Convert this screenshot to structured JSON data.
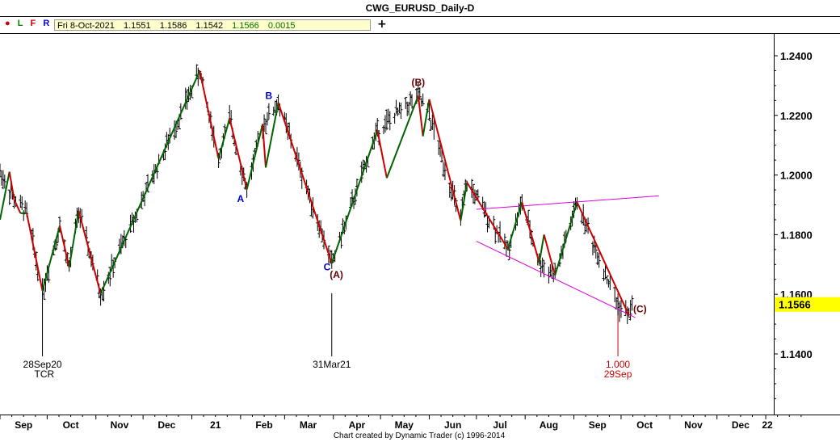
{
  "window": {
    "title": "CWG_EURUSD_Daily-D",
    "footer": "Chart created by Dynamic Trader  (c) 1996-2014"
  },
  "toolbar": {
    "flags": [
      {
        "label": "●",
        "color": "#cc0000"
      },
      {
        "label": "L",
        "color": "#008000"
      },
      {
        "label": "F",
        "color": "#cc0000"
      },
      {
        "label": "R",
        "color": "#0000cc"
      }
    ],
    "add_label": "+"
  },
  "quote": {
    "date": "Fri 8-Oct-2021",
    "open": "1.1551",
    "high": "1.1586",
    "low": "1.1542",
    "close": "1.1566",
    "change": "0.0015"
  },
  "chart_data": {
    "type": "ohlc",
    "y_ticks": [
      "1.2400",
      "1.2200",
      "1.2000",
      "1.1800",
      "1.1600",
      "1.1400"
    ],
    "ylim": [
      1.125,
      1.25
    ],
    "x_ticks": [
      "Sep",
      "Oct",
      "Nov",
      "Dec",
      "21",
      "Feb",
      "Mar",
      "Apr",
      "May",
      "Jun",
      "Jul",
      "Aug",
      "Sep",
      "Oct",
      "Nov",
      "Dec",
      "22"
    ],
    "x_range": [
      "2020-09-01",
      "2022-01-02"
    ],
    "last_price": {
      "label": "1.1566",
      "value": 1.1566
    },
    "pivots": [
      {
        "date": "2020-09-01",
        "price": 1.2011
      },
      {
        "date": "2020-09-10",
        "price": 1.1918
      },
      {
        "date": "2020-09-18",
        "price": 1.1872
      },
      {
        "date": "2020-09-28",
        "price": 1.1612
      },
      {
        "date": "2020-10-09",
        "price": 1.183
      },
      {
        "date": "2020-10-15",
        "price": 1.169
      },
      {
        "date": "2020-10-21",
        "price": 1.188
      },
      {
        "date": "2020-11-04",
        "price": 1.1602
      },
      {
        "date": "2021-01-06",
        "price": 1.2349
      },
      {
        "date": "2021-01-18",
        "price": 1.2055
      },
      {
        "date": "2021-01-25",
        "price": 1.219
      },
      {
        "date": "2021-02-05",
        "price": 1.1952
      },
      {
        "date": "2021-02-15",
        "price": 1.217
      },
      {
        "date": "2021-02-25",
        "price": 1.2243
      },
      {
        "date": "2021-03-31",
        "price": 1.1704
      },
      {
        "date": "2021-04-29",
        "price": 1.215
      },
      {
        "date": "2021-05-25",
        "price": 1.2266
      },
      {
        "date": "2021-06-01",
        "price": 1.22
      },
      {
        "date": "2021-06-21",
        "price": 1.1847
      },
      {
        "date": "2021-06-25",
        "price": 1.1975
      },
      {
        "date": "2021-07-21",
        "price": 1.1752
      },
      {
        "date": "2021-07-30",
        "price": 1.1909
      },
      {
        "date": "2021-08-10",
        "price": 1.1706
      },
      {
        "date": "2021-08-20",
        "price": 1.1664
      },
      {
        "date": "2021-09-03",
        "price": 1.1909
      },
      {
        "date": "2021-09-29",
        "price": 1.1563
      },
      {
        "date": "2021-10-06",
        "price": 1.1529
      },
      {
        "date": "2021-10-08",
        "price": 1.1566
      }
    ],
    "swing_lines": [
      {
        "from": [
          "2020-09-01",
          1.185
        ],
        "to": [
          "2020-09-07",
          1.2011
        ],
        "color": "#006400"
      },
      {
        "from": [
          "2020-09-07",
          1.2011
        ],
        "to": [
          "2020-09-10",
          1.1918
        ],
        "color": "#cc0000"
      },
      {
        "from": [
          "2020-09-10",
          1.1918
        ],
        "to": [
          "2020-09-14",
          1.1872
        ],
        "color": "#cc0000"
      },
      {
        "from": [
          "2020-09-14",
          1.1872
        ],
        "to": [
          "2020-09-18",
          1.1872
        ],
        "color": "#006400"
      },
      {
        "from": [
          "2020-09-18",
          1.1872
        ],
        "to": [
          "2020-09-28",
          1.1612
        ],
        "color": "#cc0000"
      },
      {
        "from": [
          "2020-09-28",
          1.1612
        ],
        "to": [
          "2020-10-09",
          1.183
        ],
        "color": "#006400"
      },
      {
        "from": [
          "2020-10-09",
          1.183
        ],
        "to": [
          "2020-10-15",
          1.169
        ],
        "color": "#cc0000"
      },
      {
        "from": [
          "2020-10-15",
          1.169
        ],
        "to": [
          "2020-10-21",
          1.188
        ],
        "color": "#006400"
      },
      {
        "from": [
          "2020-10-21",
          1.188
        ],
        "to": [
          "2020-11-04",
          1.1602
        ],
        "color": "#cc0000"
      },
      {
        "from": [
          "2020-11-04",
          1.1602
        ],
        "to": [
          "2021-01-06",
          1.2349
        ],
        "color": "#006400"
      },
      {
        "from": [
          "2021-01-06",
          1.2349
        ],
        "to": [
          "2021-01-18",
          1.2055
        ],
        "color": "#cc0000"
      },
      {
        "from": [
          "2021-01-18",
          1.2055
        ],
        "to": [
          "2021-01-25",
          1.219
        ],
        "color": "#006400"
      },
      {
        "from": [
          "2021-01-25",
          1.219
        ],
        "to": [
          "2021-02-05",
          1.1952
        ],
        "color": "#cc0000"
      },
      {
        "from": [
          "2021-02-05",
          1.1952
        ],
        "to": [
          "2021-02-15",
          1.217
        ],
        "color": "#006400"
      },
      {
        "from": [
          "2021-02-15",
          1.217
        ],
        "to": [
          "2021-02-17",
          1.2025
        ],
        "color": "#cc0000"
      },
      {
        "from": [
          "2021-02-17",
          1.2025
        ],
        "to": [
          "2021-02-25",
          1.2243
        ],
        "color": "#006400"
      },
      {
        "from": [
          "2021-02-25",
          1.2243
        ],
        "to": [
          "2021-03-31",
          1.1704
        ],
        "color": "#cc0000"
      },
      {
        "from": [
          "2021-03-31",
          1.1704
        ],
        "to": [
          "2021-04-29",
          1.215
        ],
        "color": "#006400"
      },
      {
        "from": [
          "2021-04-29",
          1.215
        ],
        "to": [
          "2021-05-05",
          1.199
        ],
        "color": "#cc0000"
      },
      {
        "from": [
          "2021-05-05",
          1.199
        ],
        "to": [
          "2021-05-25",
          1.2266
        ],
        "color": "#006400"
      },
      {
        "from": [
          "2021-05-25",
          1.2266
        ],
        "to": [
          "2021-05-28",
          1.213
        ],
        "color": "#cc0000"
      },
      {
        "from": [
          "2021-05-28",
          1.213
        ],
        "to": [
          "2021-06-01",
          1.2254
        ],
        "color": "#006400"
      },
      {
        "from": [
          "2021-06-01",
          1.2254
        ],
        "to": [
          "2021-06-21",
          1.1847
        ],
        "color": "#cc0000"
      },
      {
        "from": [
          "2021-06-21",
          1.1847
        ],
        "to": [
          "2021-06-25",
          1.1975
        ],
        "color": "#006400"
      },
      {
        "from": [
          "2021-06-25",
          1.1975
        ],
        "to": [
          "2021-07-21",
          1.1752
        ],
        "color": "#cc0000"
      },
      {
        "from": [
          "2021-07-21",
          1.1752
        ],
        "to": [
          "2021-07-30",
          1.1909
        ],
        "color": "#006400"
      },
      {
        "from": [
          "2021-07-30",
          1.1909
        ],
        "to": [
          "2021-08-10",
          1.1706
        ],
        "color": "#cc0000"
      },
      {
        "from": [
          "2021-08-10",
          1.1706
        ],
        "to": [
          "2021-08-13",
          1.18
        ],
        "color": "#006400"
      },
      {
        "from": [
          "2021-08-13",
          1.18
        ],
        "to": [
          "2021-08-20",
          1.1664
        ],
        "color": "#cc0000"
      },
      {
        "from": [
          "2021-08-20",
          1.1664
        ],
        "to": [
          "2021-09-03",
          1.1909
        ],
        "color": "#006400"
      },
      {
        "from": [
          "2021-09-03",
          1.1909
        ],
        "to": [
          "2021-10-06",
          1.1529
        ],
        "color": "#cc0000"
      }
    ],
    "trend_lines": [
      {
        "from": [
          "2021-07-01",
          1.1885
        ],
        "to": [
          "2021-10-25",
          1.193
        ],
        "color": "#dd00dd"
      },
      {
        "from": [
          "2021-07-01",
          1.1778
        ],
        "to": [
          "2021-10-10",
          1.1522
        ],
        "color": "#dd00dd"
      }
    ],
    "wave_labels": [
      {
        "text": "A",
        "date": "2021-02-01",
        "price": 1.191,
        "color": "#0000cc"
      },
      {
        "text": "B",
        "date": "2021-02-19",
        "price": 1.2255,
        "color": "#0000cc"
      },
      {
        "text": "C",
        "date": "2021-03-28",
        "price": 1.168,
        "color": "#0000cc"
      },
      {
        "text": "(A)",
        "date": "2021-04-03",
        "price": 1.1655,
        "color": "#660000"
      },
      {
        "text": "(B)",
        "date": "2021-05-25",
        "price": 1.23,
        "color": "#660000"
      },
      {
        "text": "(C)",
        "date": "2021-10-13",
        "price": 1.154,
        "color": "#660000"
      }
    ],
    "time_markers": [
      {
        "date": "2020-09-28",
        "lines": [
          "28Sep20",
          "TCR"
        ],
        "color": "#000000"
      },
      {
        "date": "2021-03-31",
        "lines": [
          "31Mar21"
        ],
        "color": "#000000"
      },
      {
        "date": "2021-09-29",
        "lines": [
          "1.000",
          "29Sep"
        ],
        "color": "#cc0000"
      }
    ]
  }
}
